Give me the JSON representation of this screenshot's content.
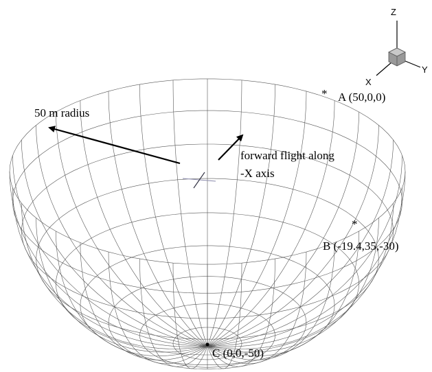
{
  "axes": {
    "z": "Z",
    "y": "Y",
    "x": "X"
  },
  "labels": {
    "radius": "50 m radius",
    "flight_line1": "forward flight along",
    "flight_line2": "-X axis"
  },
  "points": [
    {
      "label": "A (50,0,0)"
    },
    {
      "label": "B (-19.4,35,-30)"
    },
    {
      "label": "C (0,0,-50)"
    }
  ]
}
